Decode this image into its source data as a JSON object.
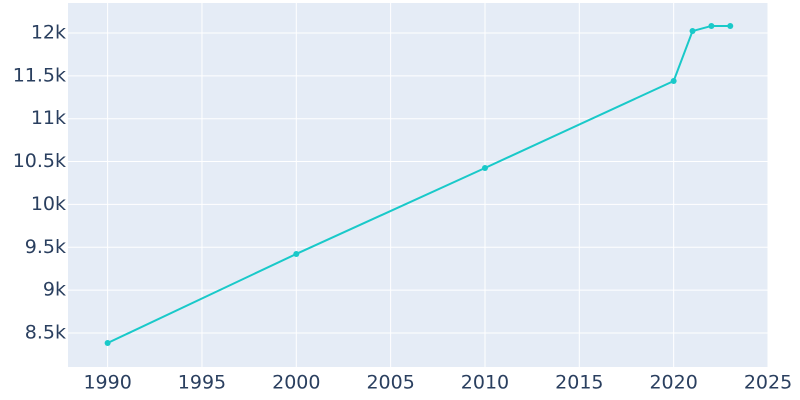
{
  "chart_data": {
    "type": "line",
    "x": [
      1990,
      2000,
      2010,
      2020,
      2021,
      2022,
      2023
    ],
    "series": [
      {
        "color": "#19c9c9",
        "values": [
          8383,
          9422,
          10425,
          11440,
          12023,
          12082,
          12082
        ]
      }
    ],
    "xlim": [
      1987.9,
      2025
    ],
    "xticks": [
      1990,
      1995,
      2000,
      2005,
      2010,
      2015,
      2020,
      2025
    ],
    "ylim": [
      8103,
      12350
    ],
    "yticks": [
      {
        "value": 8500,
        "label": "8.5k"
      },
      {
        "value": 9000,
        "label": "9k"
      },
      {
        "value": 9500,
        "label": "9.5k"
      },
      {
        "value": 10000,
        "label": "10k"
      },
      {
        "value": 10500,
        "label": "10.5k"
      },
      {
        "value": 11000,
        "label": "11k"
      },
      {
        "value": 11500,
        "label": "11.5k"
      },
      {
        "value": 12000,
        "label": "12k"
      }
    ],
    "grid": true
  }
}
